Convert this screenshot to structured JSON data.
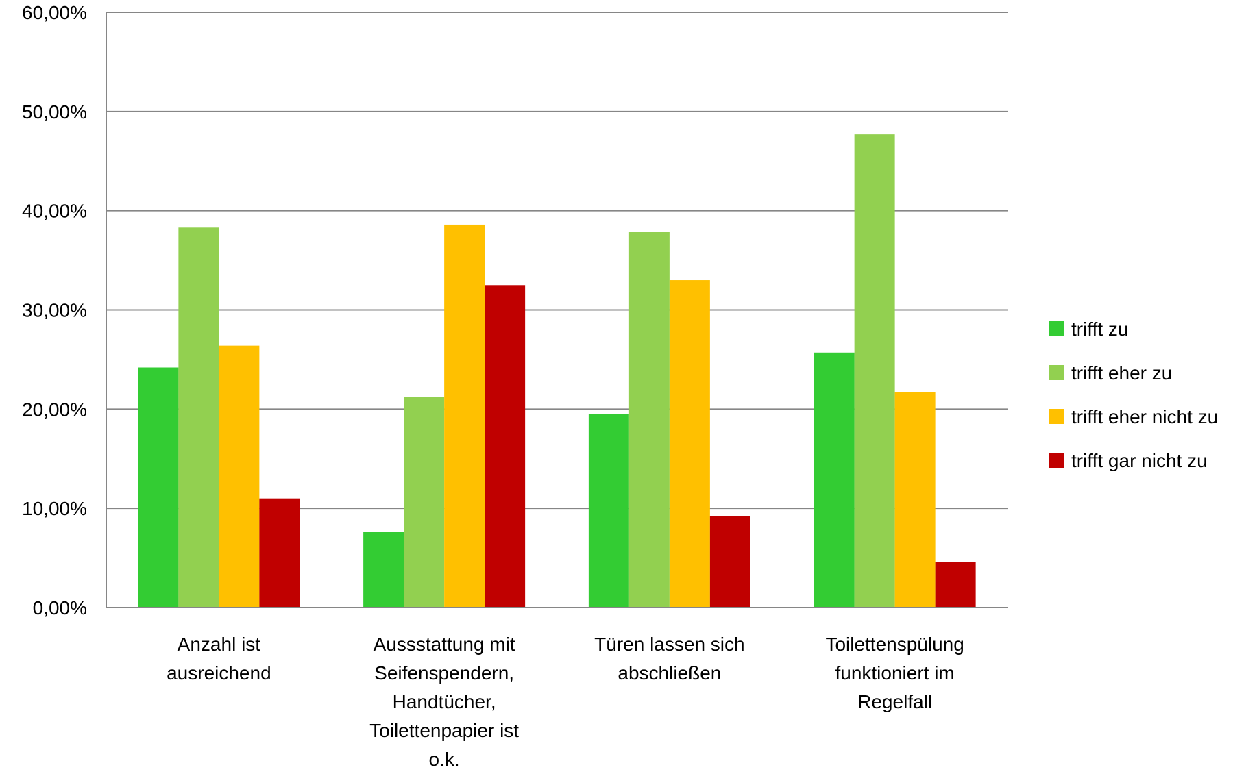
{
  "chart_data": {
    "type": "bar",
    "title": "",
    "xlabel": "",
    "ylabel": "",
    "categories": [
      [
        "Anzahl ist",
        "ausreichend"
      ],
      [
        "Aussstattung mit",
        "Seifenspendern,",
        "Handtücher,",
        "Toilettenpapier  ist",
        "o.k."
      ],
      [
        "Türen lassen sich",
        "abschließen"
      ],
      [
        "Toilettenspülung",
        "funktioniert im",
        "Regelfall"
      ]
    ],
    "ylim": [
      0,
      60
    ],
    "yticks": [
      0,
      10,
      20,
      30,
      40,
      50,
      60
    ],
    "ytick_labels": [
      "0,00%",
      "10,00%",
      "20,00%",
      "30,00%",
      "40,00%",
      "50,00%",
      "60,00%"
    ],
    "grid": true,
    "legend_position": "right",
    "series": [
      {
        "name": "trifft zu",
        "color": "#33cc33",
        "values": [
          24.2,
          7.6,
          19.5,
          25.7
        ]
      },
      {
        "name": "trifft eher zu",
        "color": "#92d050",
        "values": [
          38.3,
          21.2,
          37.9,
          47.7
        ]
      },
      {
        "name": "trifft eher nicht zu",
        "color": "#ffc000",
        "values": [
          26.4,
          38.6,
          33.0,
          21.7
        ]
      },
      {
        "name": "trifft gar nicht zu",
        "color": "#c00000",
        "values": [
          11.0,
          32.5,
          9.2,
          4.6
        ]
      }
    ]
  }
}
